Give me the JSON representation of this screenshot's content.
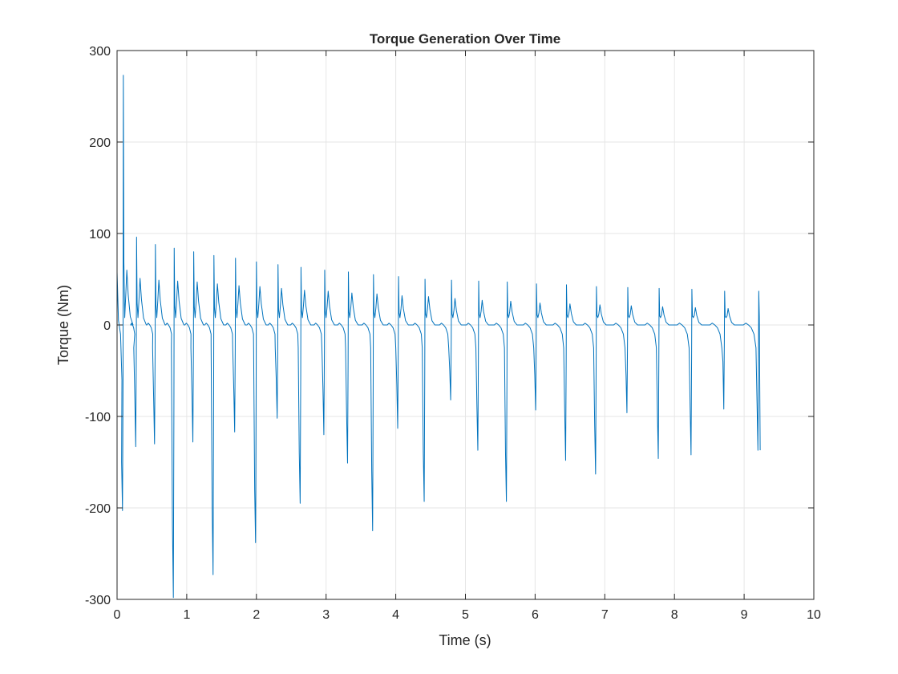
{
  "chart_data": {
    "type": "line",
    "title": "Torque Generation Over Time",
    "xlabel": "Time (s)",
    "ylabel": "Torque (Nm)",
    "xlim": [
      0,
      10
    ],
    "ylim": [
      -300,
      300
    ],
    "xticks": [
      0,
      1,
      2,
      3,
      4,
      5,
      6,
      7,
      8,
      9,
      10
    ],
    "yticks": [
      -300,
      -200,
      -100,
      0,
      100,
      200,
      300
    ],
    "xtick_labels": [
      "0",
      "1",
      "2",
      "3",
      "4",
      "5",
      "6",
      "7",
      "8",
      "9",
      "10"
    ],
    "ytick_labels": [
      "-300",
      "-200",
      "-100",
      "0",
      "100",
      "200",
      "300"
    ],
    "grid": true,
    "legend": "none",
    "line_color": "#0072BD",
    "series": [
      {
        "cycles": [
          {
            "t": 0.09,
            "min": -203,
            "max": 273,
            "pre_min": -150,
            "post_peak": 60
          },
          {
            "t": 0.28,
            "min": -133,
            "max": 96,
            "pre_min": -80,
            "post_peak": 51
          },
          {
            "t": 0.55,
            "min": -130,
            "max": 88,
            "pre_min": -80,
            "post_peak": 49
          },
          {
            "t": 0.82,
            "min": -298,
            "max": 84,
            "pre_min": -220,
            "post_peak": 48
          },
          {
            "t": 1.1,
            "min": -128,
            "max": 80,
            "pre_min": -75,
            "post_peak": 47
          },
          {
            "t": 1.39,
            "min": -273,
            "max": 76,
            "pre_min": -200,
            "post_peak": 45
          },
          {
            "t": 1.7,
            "min": -117,
            "max": 73,
            "pre_min": -70,
            "post_peak": 43
          },
          {
            "t": 2.0,
            "min": -238,
            "max": 69,
            "pre_min": -180,
            "post_peak": 42
          },
          {
            "t": 2.31,
            "min": -102,
            "max": 66,
            "pre_min": -60,
            "post_peak": 40
          },
          {
            "t": 2.64,
            "min": -195,
            "max": 63,
            "pre_min": -140,
            "post_peak": 38
          },
          {
            "t": 2.98,
            "min": -120,
            "max": 60,
            "pre_min": -70,
            "post_peak": 37
          },
          {
            "t": 3.32,
            "min": -151,
            "max": 58,
            "pre_min": -100,
            "post_peak": 35
          },
          {
            "t": 3.68,
            "min": -225,
            "max": 55,
            "pre_min": -160,
            "post_peak": 34
          },
          {
            "t": 4.04,
            "min": -113,
            "max": 53,
            "pre_min": -65,
            "post_peak": 32
          },
          {
            "t": 4.42,
            "min": -193,
            "max": 50,
            "pre_min": -140,
            "post_peak": 31
          },
          {
            "t": 4.8,
            "min": -82,
            "max": 49,
            "pre_min": -50,
            "post_peak": 29
          },
          {
            "t": 5.19,
            "min": -137,
            "max": 48,
            "pre_min": -90,
            "post_peak": 27
          },
          {
            "t": 5.6,
            "min": -193,
            "max": 47,
            "pre_min": -140,
            "post_peak": 26
          },
          {
            "t": 6.02,
            "min": -93,
            "max": 45,
            "pre_min": -55,
            "post_peak": 24
          },
          {
            "t": 6.45,
            "min": -148,
            "max": 44,
            "pre_min": -95,
            "post_peak": 23
          },
          {
            "t": 6.88,
            "min": -163,
            "max": 42,
            "pre_min": -110,
            "post_peak": 22
          },
          {
            "t": 7.33,
            "min": -96,
            "max": 41,
            "pre_min": -55,
            "post_peak": 21
          },
          {
            "t": 7.78,
            "min": -146,
            "max": 40,
            "pre_min": -95,
            "post_peak": 20
          },
          {
            "t": 8.25,
            "min": -142,
            "max": 39,
            "pre_min": -90,
            "post_peak": 19
          },
          {
            "t": 8.72,
            "min": -92,
            "max": 37,
            "pre_min": -40,
            "post_peak": 18
          },
          {
            "t": 9.21,
            "min": -137,
            "max": 37,
            "pre_min": -85,
            "post_peak": 0
          }
        ],
        "start": {
          "t": 0.0,
          "value": 58
        },
        "end": {
          "t": 9.23,
          "value": -137
        }
      }
    ]
  }
}
